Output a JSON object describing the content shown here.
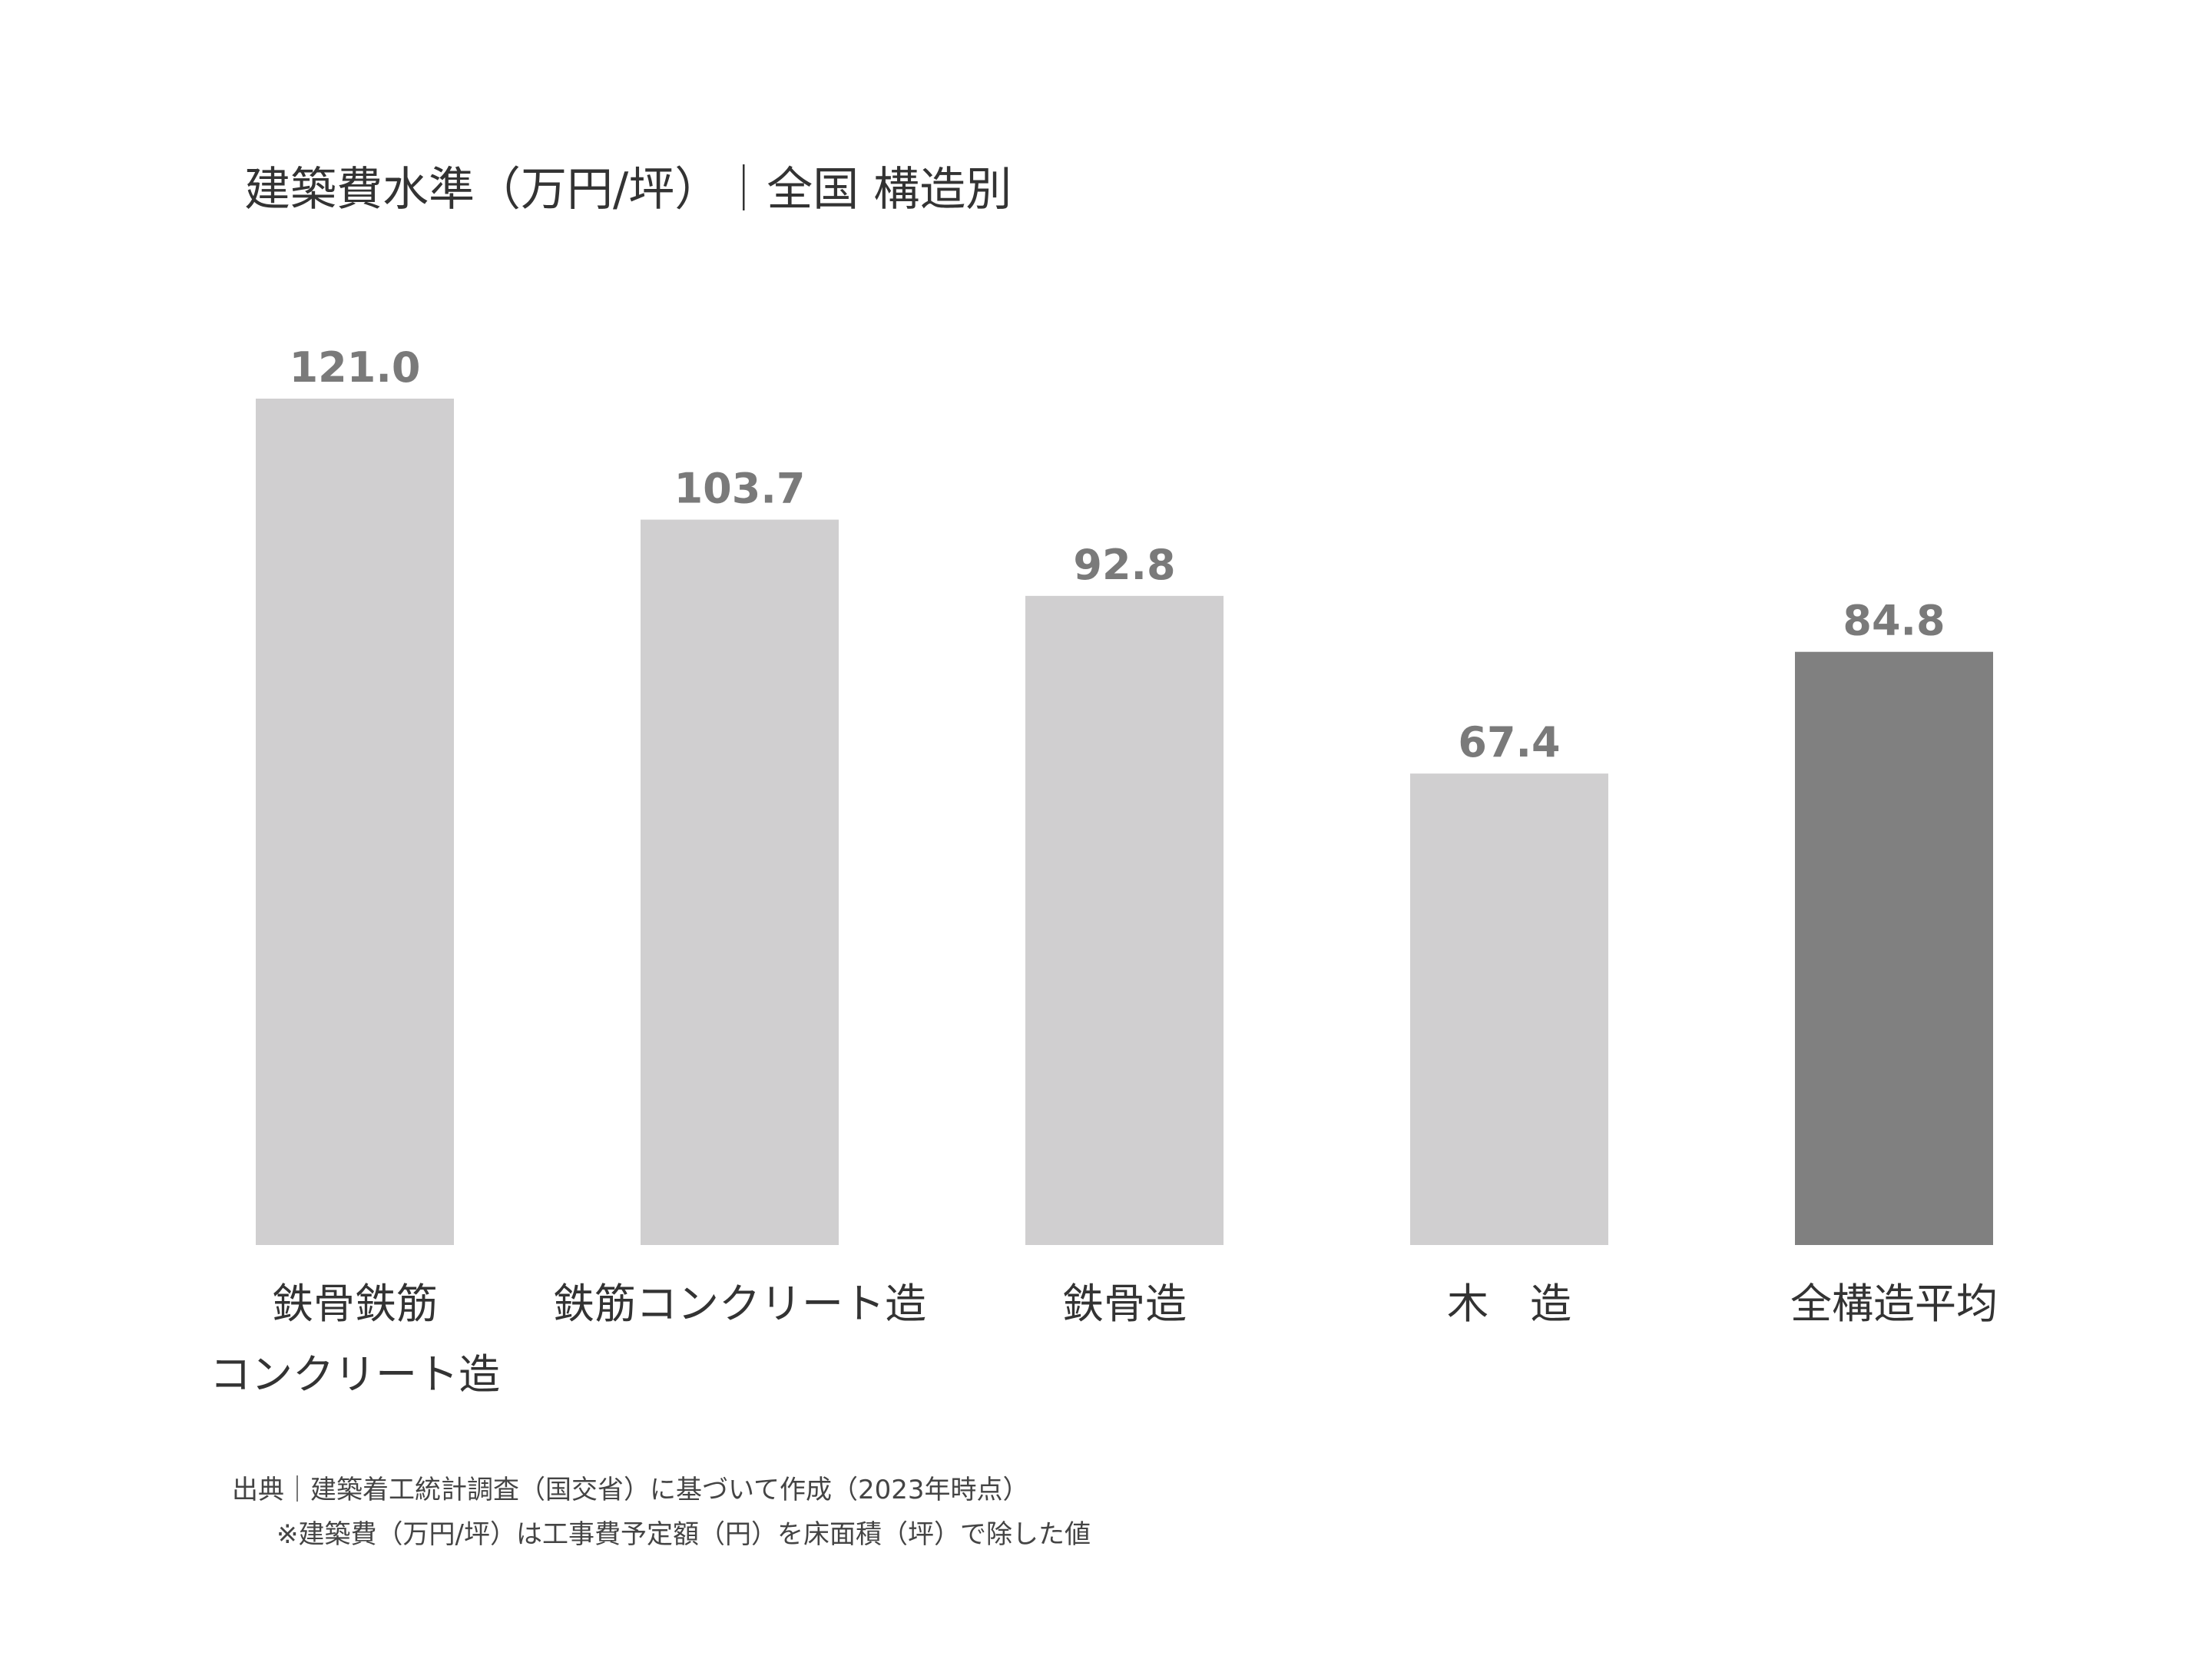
{
  "chart_data": {
    "type": "bar",
    "title": "建築費水準（万円/坪）｜全国 構造別",
    "categories": [
      "鉄骨鉄筋\nコンクリート造",
      "鉄筋コンクリート造",
      "鉄骨造",
      "木　造",
      "全構造平均"
    ],
    "values": [
      121.0,
      103.7,
      92.8,
      67.4,
      84.8
    ],
    "value_labels": [
      "121.0",
      "103.7",
      "92.8",
      "67.4",
      "84.8"
    ],
    "colors": [
      "#d0cfd0",
      "#d0cfd0",
      "#d0cfd0",
      "#d0cfd0",
      "#808080"
    ],
    "notes": [
      "出典｜建築着工統計調査（国交省）に基づいて作成（2023年時点）",
      "※建築費（万円/坪）は工事費予定額（円）を床面積（坪）で除した値"
    ]
  }
}
